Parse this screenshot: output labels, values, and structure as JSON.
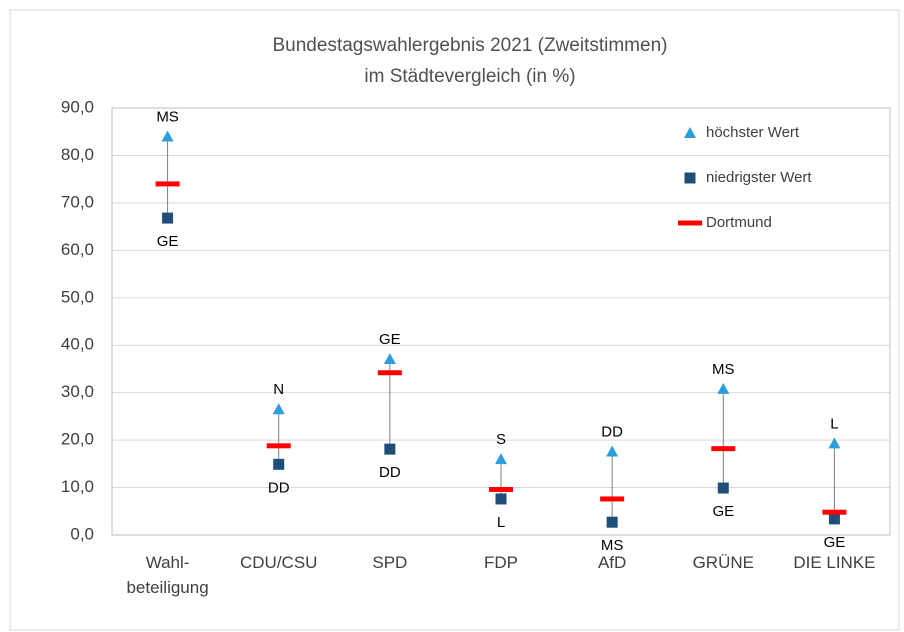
{
  "chart_data": {
    "type": "range",
    "title_lines": [
      "Bundestagswahlergebnis 2021 (Zweitstimmen)",
      "im Städtevergleich (in %)"
    ],
    "categories": [
      "Wahl-\nbeteiligung",
      "CDU/CSU",
      "SPD",
      "FDP",
      "AfD",
      "GRÜNE",
      "DIE LINKE"
    ],
    "series": [
      {
        "name": "höchster Wert",
        "color": "#2e9ddb",
        "marker": "triangle",
        "values": [
          84,
          26.5,
          37.1,
          16,
          17.6,
          30.8,
          19.3
        ],
        "labels": [
          "MS",
          "N",
          "GE",
          "S",
          "DD",
          "MS",
          "L"
        ]
      },
      {
        "name": "niedrigster Wert",
        "color": "#1f4e79",
        "marker": "square",
        "values": [
          66.8,
          14.9,
          18.1,
          7.6,
          2.7,
          9.9,
          3.4
        ],
        "labels": [
          "GE",
          "DD",
          "DD",
          "L",
          "MS",
          "GE",
          "GE"
        ]
      },
      {
        "name": "Dortmund",
        "color": "#ff0000",
        "marker": "dash",
        "values": [
          74,
          18.8,
          34.2,
          9.6,
          7.6,
          18.2,
          4.8
        ]
      }
    ],
    "ylim": [
      0,
      90
    ],
    "yticks": [
      {
        "value": 0,
        "label": "0,0"
      },
      {
        "value": 10,
        "label": "10,0"
      },
      {
        "value": 20,
        "label": "20,0"
      },
      {
        "value": 30,
        "label": "30,0"
      },
      {
        "value": 40,
        "label": "40,0"
      },
      {
        "value": 50,
        "label": "50,0"
      },
      {
        "value": 60,
        "label": "60,0"
      },
      {
        "value": 70,
        "label": "70,0"
      },
      {
        "value": 80,
        "label": "80,0"
      },
      {
        "value": 90,
        "label": "90,0"
      }
    ],
    "grid": true,
    "legend": "top-right"
  }
}
